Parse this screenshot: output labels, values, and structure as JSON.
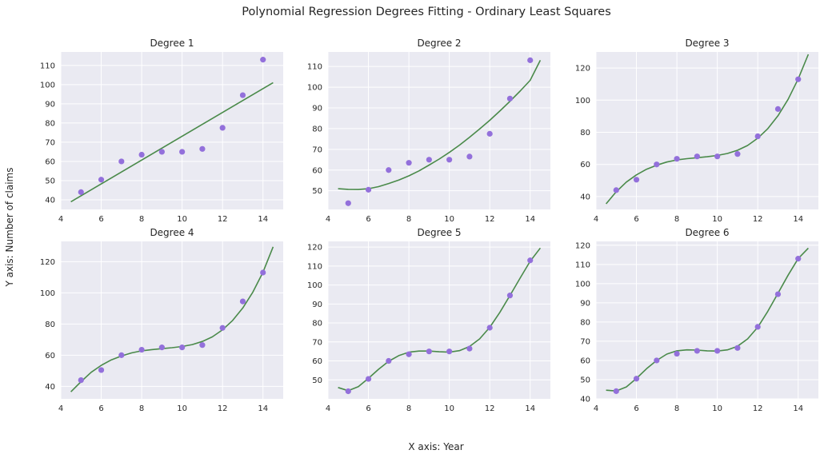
{
  "figure": {
    "title": "Polynomial Regression Degrees Fitting - Ordinary Least Squares",
    "xlabel": "X axis: Year",
    "ylabel": "Y axis: Number of claims"
  },
  "colors": {
    "background": "#EAEAF2",
    "grid": "#FFFFFF",
    "points": "#9370DB",
    "fit_line": "#4A8A4A"
  },
  "chart_data": [
    {
      "type": "scatter",
      "title": "Degree 1",
      "x": [
        5,
        6,
        7,
        8,
        9,
        10,
        11,
        12,
        13,
        14
      ],
      "y": [
        44,
        50.5,
        60,
        63.5,
        65,
        65,
        66.5,
        77.5,
        94.5,
        113
      ],
      "fit": {
        "x": [
          4.5,
          14.5
        ],
        "y": [
          39,
          101
        ]
      },
      "xlim": [
        4,
        15
      ],
      "ylim": [
        35,
        117
      ],
      "xticks": [
        4,
        6,
        8,
        10,
        12,
        14
      ],
      "yticks": [
        40,
        50,
        60,
        70,
        80,
        90,
        100,
        110
      ],
      "grid": true
    },
    {
      "type": "scatter",
      "title": "Degree 2",
      "x": [
        5,
        6,
        7,
        8,
        9,
        10,
        11,
        12,
        13,
        14
      ],
      "y": [
        44,
        50.5,
        60,
        63.5,
        65,
        65,
        66.5,
        77.5,
        94.5,
        113
      ],
      "fit": {
        "x": [
          4.5,
          5,
          5.5,
          6,
          6.5,
          7,
          7.5,
          8,
          8.5,
          9,
          9.5,
          10,
          10.5,
          11,
          11.5,
          12,
          12.5,
          13,
          13.5,
          14,
          14.5
        ],
        "y": [
          51,
          50.7,
          50.6,
          51,
          52,
          53.5,
          55.2,
          57.2,
          59.6,
          62.4,
          65.3,
          68.5,
          72,
          75.8,
          79.8,
          84,
          88.5,
          93.2,
          98.1,
          103.3,
          113
        ]
      },
      "xlim": [
        4,
        15
      ],
      "ylim": [
        41,
        117
      ],
      "xticks": [
        4,
        6,
        8,
        10,
        12,
        14
      ],
      "yticks": [
        50,
        60,
        70,
        80,
        90,
        100,
        110
      ],
      "grid": true
    },
    {
      "type": "scatter",
      "title": "Degree 3",
      "x": [
        5,
        6,
        7,
        8,
        9,
        10,
        11,
        12,
        13,
        14
      ],
      "y": [
        44,
        50.5,
        60,
        63.5,
        65,
        65,
        66.5,
        77.5,
        94.5,
        113
      ],
      "fit": {
        "x": [
          4.5,
          5,
          5.5,
          6,
          6.5,
          7,
          7.5,
          8,
          8.5,
          9,
          9.5,
          10,
          10.5,
          11,
          11.5,
          12,
          12.5,
          13,
          13.5,
          14,
          14.5
        ],
        "y": [
          35.5,
          43,
          49,
          53.5,
          57,
          59.5,
          61.5,
          62.8,
          63.6,
          64.2,
          64.8,
          65.6,
          66.8,
          68.8,
          71.8,
          76.3,
          82.3,
          90.3,
          100.5,
          113.2,
          128.5
        ]
      },
      "xlim": [
        4,
        15
      ],
      "ylim": [
        32,
        130
      ],
      "xticks": [
        4,
        6,
        8,
        10,
        12,
        14
      ],
      "yticks": [
        40,
        60,
        80,
        100,
        120
      ],
      "grid": true
    },
    {
      "type": "scatter",
      "title": "Degree 4",
      "x": [
        5,
        6,
        7,
        8,
        9,
        10,
        11,
        12,
        13,
        14
      ],
      "y": [
        44,
        50.5,
        60,
        63.5,
        65,
        65,
        66.5,
        77.5,
        94.5,
        113
      ],
      "fit": {
        "x": [
          4.5,
          5,
          5.5,
          6,
          6.5,
          7,
          7.5,
          8,
          8.5,
          9,
          9.5,
          10,
          10.5,
          11,
          11.5,
          12,
          12.5,
          13,
          13.5,
          14,
          14.5
        ],
        "y": [
          36.5,
          43,
          49,
          53.5,
          57,
          59.5,
          61.5,
          62.8,
          63.6,
          64.2,
          64.8,
          65.6,
          66.8,
          68.8,
          71.8,
          76.3,
          82.3,
          90.3,
          100.5,
          113.2,
          129.5
        ]
      },
      "xlim": [
        4,
        15
      ],
      "ylim": [
        32,
        133
      ],
      "xticks": [
        4,
        6,
        8,
        10,
        12,
        14
      ],
      "yticks": [
        40,
        60,
        80,
        100,
        120
      ],
      "grid": true
    },
    {
      "type": "scatter",
      "title": "Degree 5",
      "x": [
        5,
        6,
        7,
        8,
        9,
        10,
        11,
        12,
        13,
        14
      ],
      "y": [
        44,
        50.5,
        60,
        63.5,
        65,
        65,
        66.5,
        77.5,
        94.5,
        113
      ],
      "fit": {
        "x": [
          4.5,
          5,
          5.5,
          6,
          6.5,
          7,
          7.5,
          8,
          8.5,
          9,
          9.5,
          10,
          10.5,
          11,
          11.5,
          12,
          12.5,
          13,
          13.5,
          14,
          14.5
        ],
        "y": [
          46,
          44.3,
          46.4,
          50.8,
          55.6,
          59.8,
          62.8,
          64.6,
          65.2,
          65.2,
          64.8,
          64.6,
          65.4,
          67.6,
          71.6,
          77.7,
          85.6,
          94.5,
          103.6,
          112.5,
          119.5
        ]
      },
      "xlim": [
        4,
        15
      ],
      "ylim": [
        40,
        123
      ],
      "xticks": [
        4,
        6,
        8,
        10,
        12,
        14
      ],
      "yticks": [
        50,
        60,
        70,
        80,
        90,
        100,
        110,
        120
      ],
      "grid": true
    },
    {
      "type": "scatter",
      "title": "Degree 6",
      "x": [
        5,
        6,
        7,
        8,
        9,
        10,
        11,
        12,
        13,
        14
      ],
      "y": [
        44,
        50.5,
        60,
        63.5,
        65,
        65,
        66.5,
        77.5,
        94.5,
        113
      ],
      "fit": {
        "x": [
          4.5,
          5,
          5.5,
          6,
          6.5,
          7,
          7.5,
          8,
          8.5,
          9,
          9.5,
          10,
          10.5,
          11,
          11.5,
          12,
          12.5,
          13,
          13.5,
          14,
          14.5
        ],
        "y": [
          44.5,
          44.1,
          46.2,
          50.6,
          55.7,
          60,
          63.3,
          65,
          65.5,
          65.4,
          65,
          64.9,
          65.5,
          67.4,
          71.2,
          77.3,
          85.6,
          95,
          104.4,
          113,
          118.5
        ]
      },
      "xlim": [
        4,
        15
      ],
      "ylim": [
        40,
        122
      ],
      "xticks": [
        4,
        6,
        8,
        10,
        12,
        14
      ],
      "yticks": [
        40,
        50,
        60,
        70,
        80,
        90,
        100,
        110,
        120
      ],
      "grid": true
    }
  ]
}
